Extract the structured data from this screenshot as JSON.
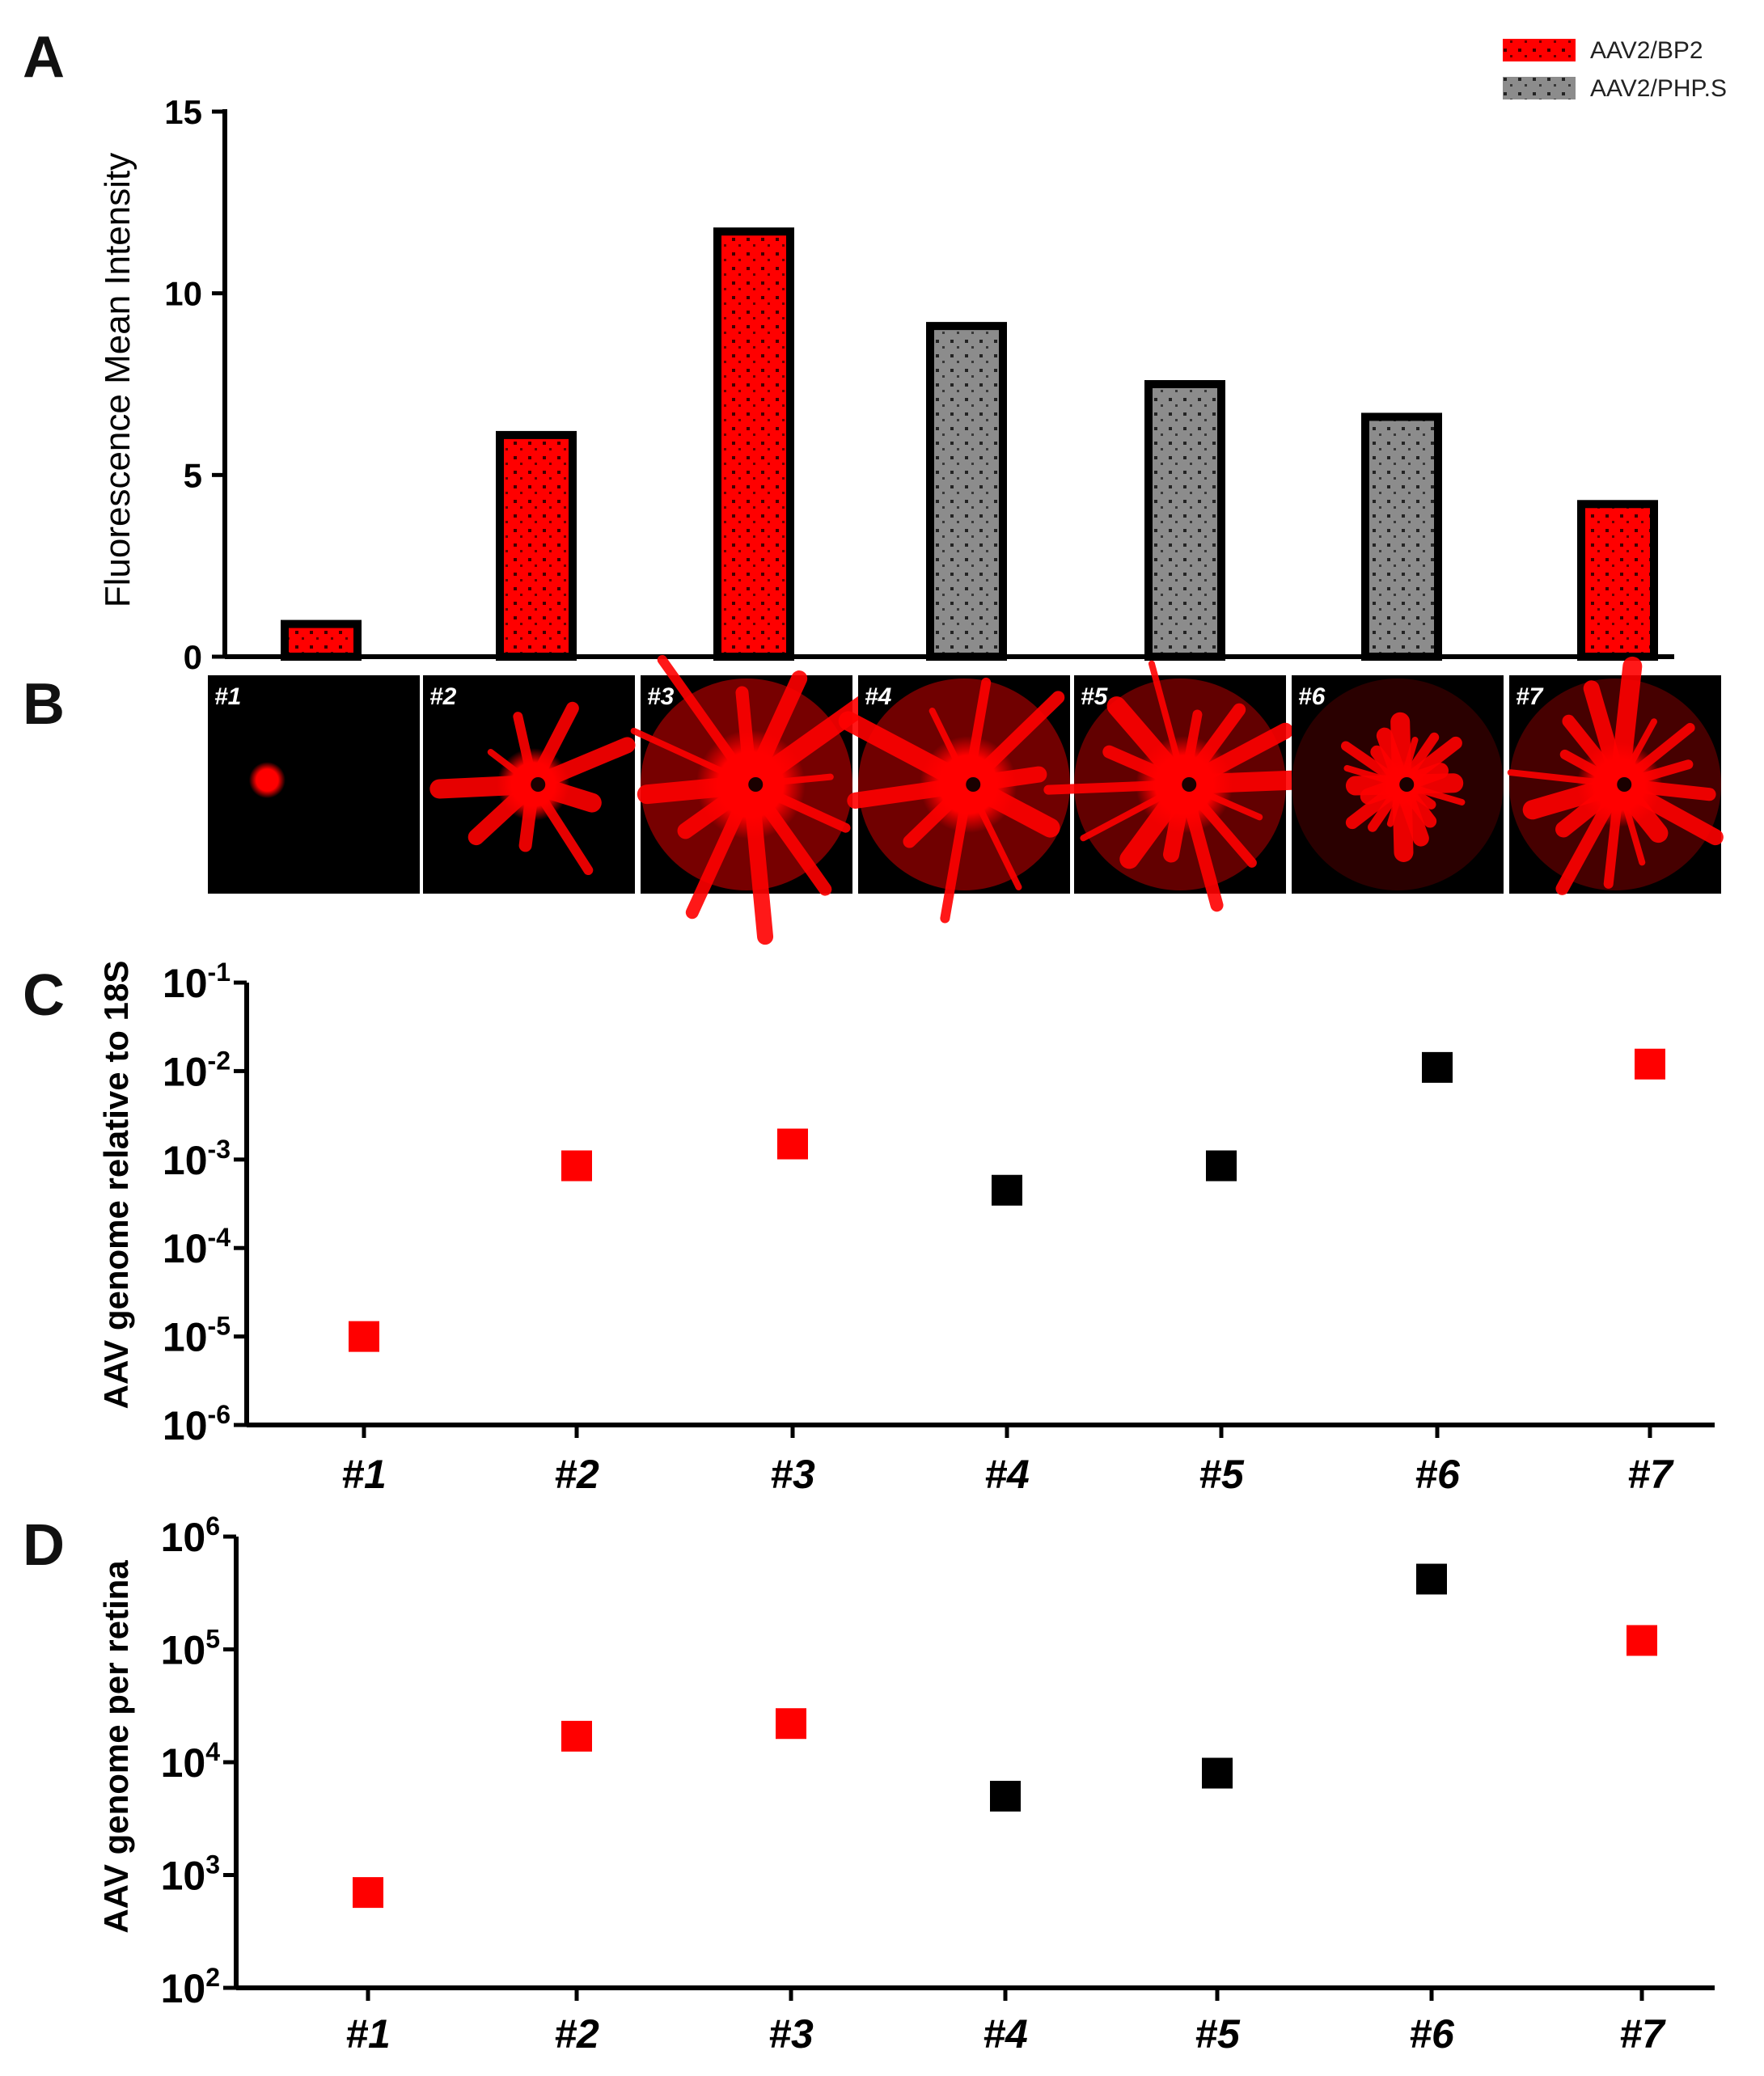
{
  "colors": {
    "bp2": "#ff0000",
    "phps": "#8c8c8c",
    "phps_point": "#000000",
    "axis": "#000000"
  },
  "legend": [
    {
      "label": "AAV2/BP2",
      "color": "#ff0000"
    },
    {
      "label": "AAV2/PHP.S",
      "color": "#8c8c8c"
    }
  ],
  "panels": {
    "a": "A",
    "b": "B",
    "c": "C",
    "d": "D"
  },
  "image_labels": [
    "#1",
    "#2",
    "#3",
    "#4",
    "#5",
    "#6",
    "#7"
  ],
  "chart_data": [
    {
      "id": "A",
      "type": "bar",
      "title": "",
      "xlabel": "",
      "ylabel": "Fluorescence Mean Intensity",
      "categories": [
        "#1",
        "#2",
        "#3",
        "#4",
        "#5",
        "#6",
        "#7"
      ],
      "values": [
        0.9,
        6.1,
        11.7,
        9.1,
        7.5,
        6.6,
        4.2
      ],
      "groups": [
        "AAV2/BP2",
        "AAV2/BP2",
        "AAV2/BP2",
        "AAV2/PHP.S",
        "AAV2/PHP.S",
        "AAV2/PHP.S",
        "AAV2/BP2"
      ],
      "ylim": [
        0,
        15
      ],
      "yticks": [
        "0",
        "5",
        "10",
        "15"
      ],
      "ytick_values": [
        0,
        5,
        10,
        15
      ],
      "legend_position": "top-right",
      "grid": false
    },
    {
      "id": "C",
      "type": "scatter",
      "yscale": "log",
      "ylabel": "AAV genome relative to 18S",
      "categories": [
        "#1",
        "#2",
        "#3",
        "#4",
        "#5",
        "#6",
        "#7"
      ],
      "values": [
        1e-05,
        0.00085,
        0.0015,
        0.00045,
        0.00085,
        0.011,
        0.012
      ],
      "groups": [
        "AAV2/BP2",
        "AAV2/BP2",
        "AAV2/BP2",
        "AAV2/PHP.S",
        "AAV2/PHP.S",
        "AAV2/PHP.S",
        "AAV2/BP2"
      ],
      "ylim": [
        1e-06,
        0.1
      ],
      "ytick_base": "10",
      "ytick_exponents": [
        "-6",
        "-5",
        "-4",
        "-3",
        "-2",
        "-1"
      ],
      "grid": false
    },
    {
      "id": "D",
      "type": "scatter",
      "yscale": "log",
      "ylabel": "AAV genome per retina",
      "categories": [
        "#1",
        "#2",
        "#3",
        "#4",
        "#5",
        "#6",
        "#7"
      ],
      "values": [
        700,
        17000,
        22000,
        5000,
        8000,
        420000,
        120000
      ],
      "groups": [
        "AAV2/BP2",
        "AAV2/BP2",
        "AAV2/BP2",
        "AAV2/PHP.S",
        "AAV2/PHP.S",
        "AAV2/PHP.S",
        "AAV2/BP2"
      ],
      "ylim": [
        100,
        1000000
      ],
      "ytick_base": "10",
      "ytick_exponents": [
        "2",
        "3",
        "4",
        "5",
        "6"
      ],
      "grid": false
    }
  ]
}
